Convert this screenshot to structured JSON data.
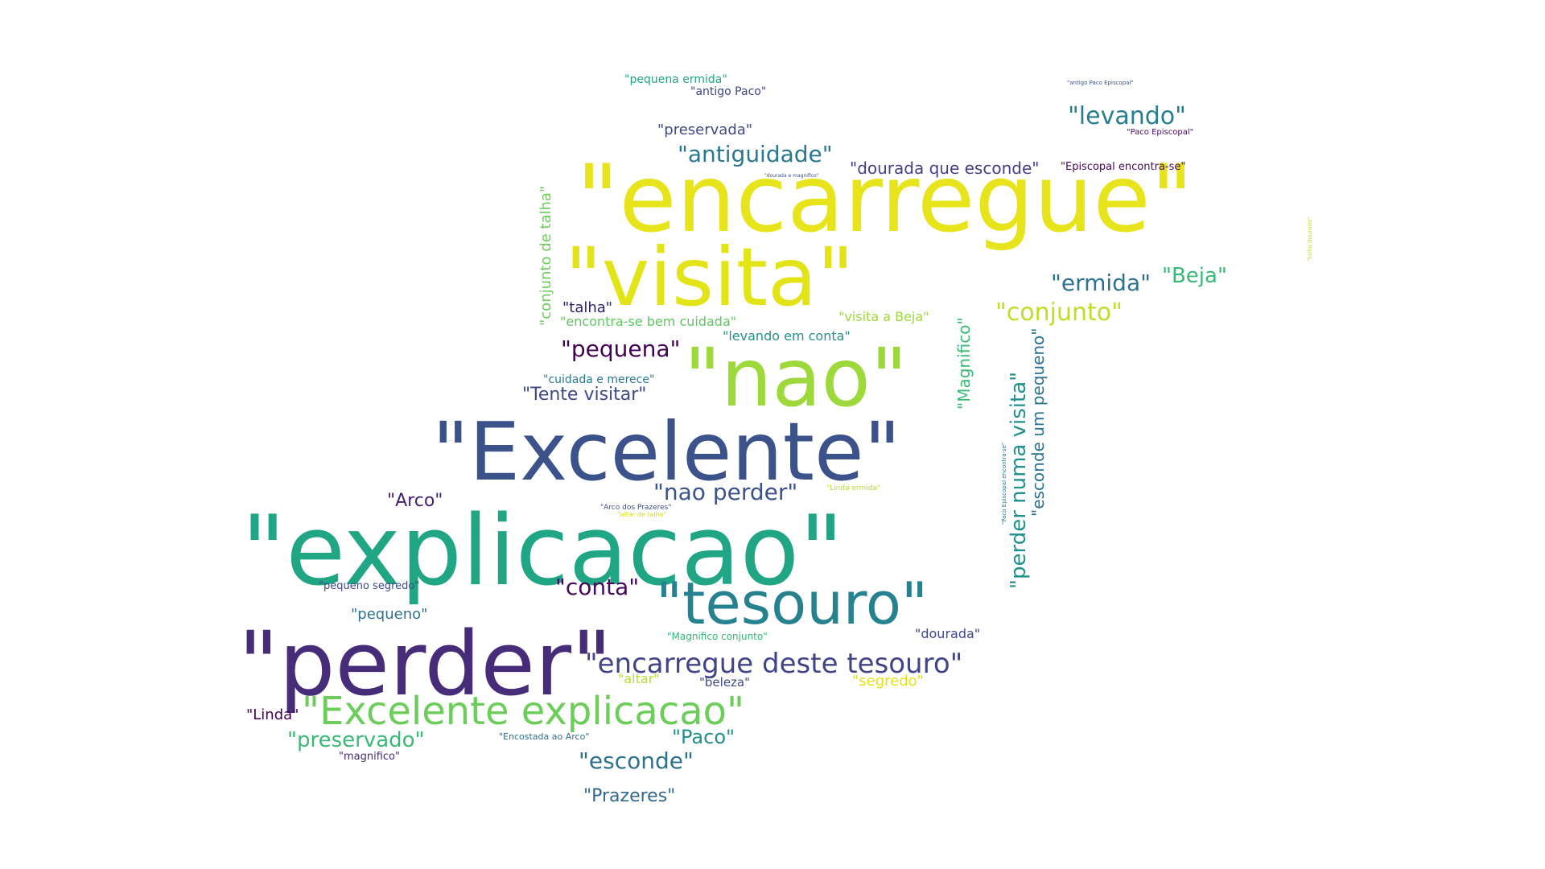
{
  "palette": {
    "yellow": "#e8e41c",
    "lime": "#9dd93b",
    "lightgreen": "#5ec962",
    "green": "#3aba76",
    "teal": "#21a685",
    "sea": "#26828e",
    "blue": "#31688e",
    "indigo": "#3b528b",
    "purple": "#472c7a",
    "dark": "#440154",
    "navy": "#3e4989"
  },
  "words": [
    {
      "text": "\"encarregue\"",
      "color": "#e8e41c"
    },
    {
      "text": "\"visita\"",
      "color": "#e2e418"
    },
    {
      "text": "\"nao\"",
      "color": "#9dd93b"
    },
    {
      "text": "\"Excelente\"",
      "color": "#3b528b"
    },
    {
      "text": "\"explicacao\"",
      "color": "#21a685"
    },
    {
      "text": "\"tesouro\"",
      "color": "#26828e"
    },
    {
      "text": "\"perder\"",
      "color": "#472c7a"
    },
    {
      "text": "\"encarregue deste tesouro\"",
      "color": "#414487"
    },
    {
      "text": "\"Excelente explicacao\"",
      "color": "#6ccd5a"
    },
    {
      "text": "\"conjunto\"",
      "color": "#bddf26"
    },
    {
      "text": "\"levando\"",
      "color": "#287d8e"
    },
    {
      "text": "\"antiguidade\"",
      "color": "#2a788e"
    },
    {
      "text": "\"ermida\"",
      "color": "#2c728e"
    },
    {
      "text": "\"Beja\"",
      "color": "#3aba76"
    },
    {
      "text": "\"pequena\"",
      "color": "#440154"
    },
    {
      "text": "\"nao perder\"",
      "color": "#3b528b"
    },
    {
      "text": "\"conta\"",
      "color": "#46085c"
    },
    {
      "text": "\"esconde\"",
      "color": "#2c728e"
    },
    {
      "text": "\"preservado\"",
      "color": "#3aba76"
    },
    {
      "text": "\"Paco\"",
      "color": "#21918c"
    },
    {
      "text": "\"Prazeres\"",
      "color": "#31688e"
    },
    {
      "text": "\"Tente visitar\"",
      "color": "#3e4989"
    },
    {
      "text": "\"Arco\"",
      "color": "#482173"
    },
    {
      "text": "\"pequeno\"",
      "color": "#2c728e"
    },
    {
      "text": "\"preservada\"",
      "color": "#3e4a89"
    },
    {
      "text": "\"dourada que esconde\"",
      "color": "#433e85"
    },
    {
      "text": "\"talha\"",
      "color": "#2d1e66"
    },
    {
      "text": "\"Linda\"",
      "color": "#440154"
    },
    {
      "text": "\"dourada\"",
      "color": "#3e4989"
    },
    {
      "text": "\"segredo\"",
      "color": "#e2e418"
    },
    {
      "text": "\"altar\"",
      "color": "#b5de2b"
    },
    {
      "text": "\"beleza\"",
      "color": "#3e4989"
    },
    {
      "text": "\"encontra-se bem cuidada\"",
      "color": "#5ec962"
    },
    {
      "text": "\"visita a Beja\"",
      "color": "#9dd93b"
    },
    {
      "text": "\"levando em conta\"",
      "color": "#21918c"
    },
    {
      "text": "\"cuidada e merece\"",
      "color": "#2a788e"
    },
    {
      "text": "\"pequena ermida\"",
      "color": "#21a685"
    },
    {
      "text": "\"antigo Paco\"",
      "color": "#404688"
    },
    {
      "text": "\"Episcopal encontra-se\"",
      "color": "#46085c"
    },
    {
      "text": "\"pequeno segredo\"",
      "color": "#3e4989"
    },
    {
      "text": "\"Magnifico conjunto\"",
      "color": "#35b779"
    },
    {
      "text": "\"Encostada ao Arco\"",
      "color": "#2c728e"
    },
    {
      "text": "\"magnifico\"",
      "color": "#472c7a"
    },
    {
      "text": "\"Arco dos Prazeres\"",
      "color": "#3b528b"
    },
    {
      "text": "\"Linda ermida\"",
      "color": "#b5de2b"
    },
    {
      "text": "\"altar de talha\"",
      "color": "#d8e219"
    },
    {
      "text": "\"Paco Episcopal\"",
      "color": "#46085c"
    },
    {
      "text": "\"antigo Paco Episcopal\"",
      "color": "#3b528b"
    },
    {
      "text": "\"dourada e magnifico\"",
      "color": "#3b528b"
    },
    {
      "text": "\"conjunto de talha\"",
      "color": "#6ccd5a"
    },
    {
      "text": "\"Magnifico\"",
      "color": "#3aba76"
    },
    {
      "text": "\"perder numa visita\"",
      "color": "#21918c"
    },
    {
      "text": "\"esconde um pequeno\"",
      "color": "#2c728e"
    },
    {
      "text": "\"Paco Episcopal encontra-se\"",
      "color": "#287d8e"
    },
    {
      "text": "\"talha dourada\"",
      "color": "#bddf26"
    }
  ]
}
